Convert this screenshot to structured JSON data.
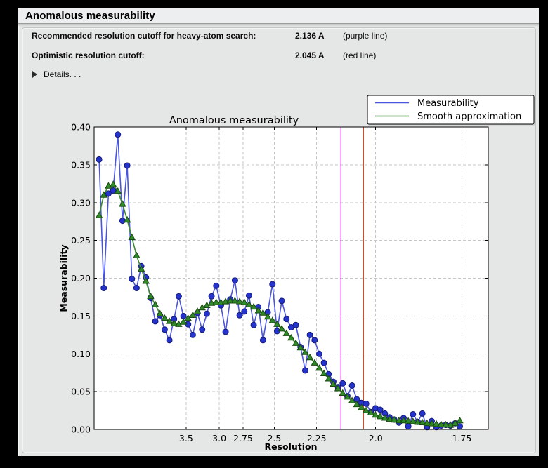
{
  "header": {
    "title": "Anomalous measurability"
  },
  "cutoffs": {
    "recommended": {
      "label": "Recommended resolution cutoff for heavy-atom search:",
      "value": "2.136 A",
      "note": "(purple line)"
    },
    "optimistic": {
      "label": "Optimistic resolution cutoff:",
      "value": "2.045 A",
      "note": "(red line)"
    }
  },
  "details": {
    "label": "Details. . ."
  },
  "chart_data": {
    "type": "line",
    "title": "Anomalous measurability",
    "xlabel": "Resolution",
    "ylabel": "Measurability",
    "grid": true,
    "x_axis_transform": "1/d^2",
    "x_range_inv_d2": [
      0,
      0.35
    ],
    "y_range": [
      0,
      0.4
    ],
    "y_tick_step": 0.05,
    "x_ticks": [
      {
        "d": 3.5,
        "label": "3.5"
      },
      {
        "d": 3.0,
        "label": "3.0"
      },
      {
        "d": 2.75,
        "label": "2.75"
      },
      {
        "d": 2.5,
        "label": "2.5"
      },
      {
        "d": 2.25,
        "label": "2.25"
      },
      {
        "d": 2.0,
        "label": "2.0"
      },
      {
        "d": 1.75,
        "label": "1.75"
      }
    ],
    "x_start_inv_d2": 0.0044,
    "x_step_inv_d2": 0.00416,
    "series": [
      {
        "name": "Measurability",
        "marker": "circle",
        "line_color": "#4a55dd",
        "marker_color": "#2433cc",
        "marker_edge": "#141a7a",
        "values": [
          0.357,
          0.187,
          0.312,
          0.316,
          0.39,
          0.276,
          0.349,
          0.199,
          0.187,
          0.216,
          0.201,
          0.174,
          0.143,
          0.151,
          0.132,
          0.118,
          0.146,
          0.176,
          0.15,
          0.139,
          0.125,
          0.154,
          0.132,
          0.153,
          0.176,
          0.19,
          0.164,
          0.129,
          0.172,
          0.197,
          0.151,
          0.156,
          0.177,
          0.138,
          0.162,
          0.118,
          0.155,
          0.192,
          0.13,
          0.17,
          0.146,
          0.135,
          0.138,
          0.109,
          0.078,
          0.125,
          0.118,
          0.1,
          0.088,
          0.073,
          0.063,
          0.056,
          0.061,
          0.044,
          0.058,
          0.04,
          0.035,
          0.034,
          0.023,
          0.028,
          0.026,
          0.021,
          0.016,
          0.013,
          0.009,
          0.015,
          0.004,
          0.02,
          0.01,
          0.021,
          0.003,
          0.011,
          0.003,
          0.005,
          0.006,
          0.005,
          0.008,
          0.004
        ]
      },
      {
        "name": "Smooth approximation",
        "marker": "triangle",
        "line_color": "#3d8a30",
        "marker_color": "#2f8b28",
        "marker_edge": "#1a4a12",
        "values": [
          0.283,
          0.31,
          0.322,
          0.324,
          0.315,
          0.298,
          0.277,
          0.254,
          0.23,
          0.212,
          0.196,
          0.176,
          0.165,
          0.153,
          0.147,
          0.143,
          0.14,
          0.139,
          0.142,
          0.147,
          0.151,
          0.156,
          0.161,
          0.164,
          0.167,
          0.168,
          0.168,
          0.169,
          0.17,
          0.17,
          0.169,
          0.168,
          0.165,
          0.162,
          0.157,
          0.154,
          0.149,
          0.144,
          0.139,
          0.133,
          0.127,
          0.121,
          0.114,
          0.108,
          0.102,
          0.095,
          0.088,
          0.081,
          0.074,
          0.067,
          0.06,
          0.054,
          0.048,
          0.043,
          0.038,
          0.033,
          0.029,
          0.025,
          0.022,
          0.019,
          0.017,
          0.015,
          0.0135,
          0.0125,
          0.0115,
          0.0115,
          0.011,
          0.0105,
          0.0095,
          0.009,
          0.008,
          0.0075,
          0.007,
          0.0065,
          0.006,
          0.0057,
          0.008,
          0.0115
        ]
      }
    ],
    "vlines": [
      {
        "name": "purple line",
        "resolution_A": 2.136,
        "color": "#c343cb"
      },
      {
        "name": "red line",
        "resolution_A": 2.045,
        "color": "#d8421f"
      }
    ],
    "legend": {
      "position": "top-right",
      "entries": [
        "Measurability",
        "Smooth approximation"
      ]
    },
    "colors": {
      "grid": "#c6c6c6",
      "plot_bg": "#ffffff",
      "axis": "#000000",
      "legend_bg": "#ffffff",
      "legend_border": "#000000"
    }
  }
}
